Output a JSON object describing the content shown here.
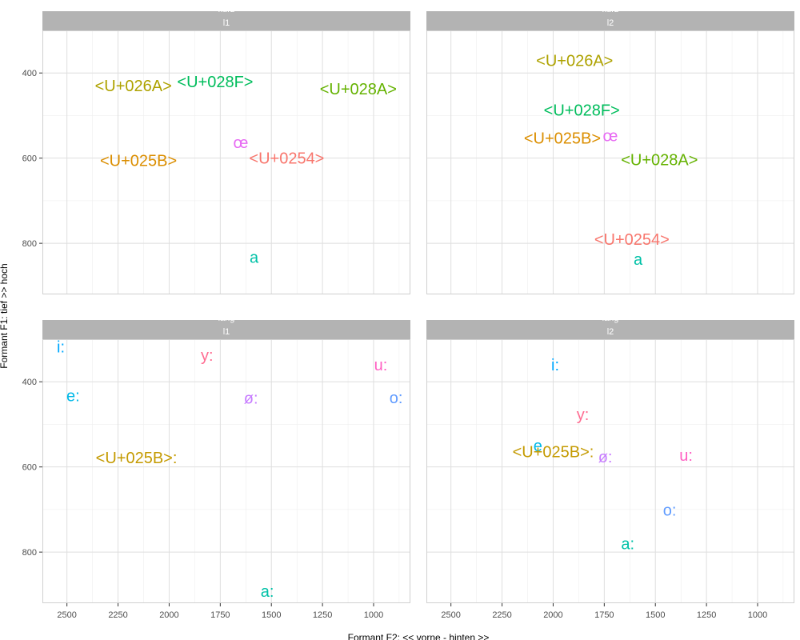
{
  "chart_data": {
    "type": "scatter",
    "title": "",
    "xlabel": "Formant F2: << vorne - hinten >>",
    "ylabel": "Formant F1: tief >> hoch",
    "x_reversed": true,
    "y_reversed": true,
    "xlim": [
      2620,
      820
    ],
    "ylim": [
      300,
      920
    ],
    "x_ticks": [
      2500,
      2250,
      2000,
      1750,
      1500,
      1250,
      1000
    ],
    "y_ticks": [
      400,
      600,
      800
    ],
    "grid": true,
    "legend": "none",
    "label_colors": {
      "<U+0254>": "#f8766d",
      "<U+025B>": "#db8e00",
      "<U+025B>:": "#c49a00",
      "<U+026A>": "#aea200",
      "<U+028A>": "#64b200",
      "<U+028F>": "#00bd5c",
      "a": "#00c1a7",
      "a:": "#00c1a7",
      "e:": "#00b8e7",
      "i:": "#00a8ff",
      "o:": "#619cff",
      "ø:": "#c77cff",
      "œ": "#e76bf3",
      "u:": "#ff61c3",
      "y:": "#ff6c91",
      "e": "#00b8e7"
    },
    "facets": [
      {
        "strip_top": "kurz",
        "strip_bottom": "l1",
        "points": [
          {
            "label": "<U+026A>",
            "x": 2175,
            "y": 430
          },
          {
            "label": "<U+028F>",
            "x": 1775,
            "y": 420
          },
          {
            "label": "<U+028A>",
            "x": 1075,
            "y": 437
          },
          {
            "label": "œ",
            "x": 1650,
            "y": 563
          },
          {
            "label": "<U+025B>",
            "x": 2150,
            "y": 605
          },
          {
            "label": "<U+0254>",
            "x": 1425,
            "y": 600
          },
          {
            "label": "a",
            "x": 1585,
            "y": 833
          }
        ]
      },
      {
        "strip_top": "kurz",
        "strip_bottom": "l2",
        "points": [
          {
            "label": "<U+026A>",
            "x": 1895,
            "y": 370
          },
          {
            "label": "<U+028F>",
            "x": 1860,
            "y": 487
          },
          {
            "label": "<U+025B>",
            "x": 1955,
            "y": 553
          },
          {
            "label": "œ",
            "x": 1720,
            "y": 547
          },
          {
            "label": "<U+028A>",
            "x": 1480,
            "y": 603
          },
          {
            "label": "<U+0254>",
            "x": 1615,
            "y": 790
          },
          {
            "label": "a",
            "x": 1585,
            "y": 837
          }
        ]
      },
      {
        "strip_top": "lang",
        "strip_bottom": "l1",
        "points": [
          {
            "label": "i:",
            "x": 2530,
            "y": 318
          },
          {
            "label": "y:",
            "x": 1815,
            "y": 338
          },
          {
            "label": "u:",
            "x": 965,
            "y": 360
          },
          {
            "label": "e:",
            "x": 2470,
            "y": 432
          },
          {
            "label": "ø:",
            "x": 1600,
            "y": 438
          },
          {
            "label": "o:",
            "x": 890,
            "y": 437
          },
          {
            "label": "<U+025B>:",
            "x": 2160,
            "y": 578
          },
          {
            "label": "a:",
            "x": 1520,
            "y": 892
          }
        ]
      },
      {
        "strip_top": "lang",
        "strip_bottom": "l2",
        "points": [
          {
            "label": "i:",
            "x": 1990,
            "y": 360
          },
          {
            "label": "y:",
            "x": 1855,
            "y": 477
          },
          {
            "label": "e",
            "x": 2075,
            "y": 550
          },
          {
            "label": "<U+025B>:",
            "x": 2000,
            "y": 564
          },
          {
            "label": "ø:",
            "x": 1745,
            "y": 576
          },
          {
            "label": "u:",
            "x": 1350,
            "y": 572
          },
          {
            "label": "o:",
            "x": 1430,
            "y": 701
          },
          {
            "label": "a:",
            "x": 1635,
            "y": 780
          }
        ]
      }
    ]
  }
}
